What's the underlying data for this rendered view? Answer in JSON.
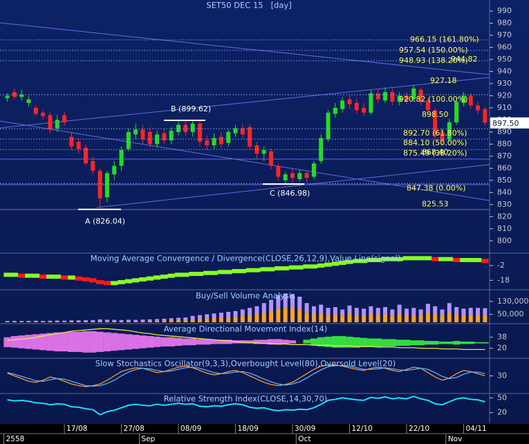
{
  "chart_data": [
    {
      "type": "candlestick",
      "title": "SET50 DEC 15   [day]",
      "categories": [
        null,
        null,
        null,
        null,
        null,
        null,
        null,
        null,
        "17/08",
        null,
        null,
        null,
        null,
        null,
        null,
        null,
        "27/08",
        null,
        null,
        null,
        null,
        null,
        null,
        null,
        "08/09",
        null,
        null,
        null,
        null,
        null,
        null,
        null,
        "18/09",
        null,
        null,
        null,
        null,
        null,
        null,
        null,
        "30/09",
        null,
        null,
        null,
        null,
        null,
        null,
        null,
        "12/10",
        null,
        null,
        null,
        null,
        null,
        null,
        null,
        "22/10",
        null,
        null,
        null,
        null,
        null,
        null,
        null,
        "04/11",
        null,
        null,
        null
      ],
      "month_categories": [
        "2558",
        null,
        null,
        null,
        null,
        null,
        null,
        null,
        null,
        null,
        null,
        null,
        null,
        null,
        null,
        null,
        null,
        null,
        null,
        "Sep",
        null,
        null,
        null,
        null,
        null,
        null,
        null,
        null,
        null,
        null,
        null,
        null,
        null,
        null,
        null,
        null,
        null,
        null,
        null,
        null,
        null,
        "Oct",
        null,
        null,
        null,
        null,
        null,
        null,
        null,
        null,
        null,
        null,
        null,
        null,
        null,
        null,
        null,
        null,
        null,
        null,
        null,
        null,
        "Nov",
        null,
        null,
        null,
        null,
        null
      ],
      "open": [
        918,
        923,
        919,
        914,
        910,
        906,
        904,
        893,
        904,
        886,
        882,
        877,
        866,
        858,
        836,
        855,
        862,
        876,
        888,
        892,
        890,
        880,
        889,
        883,
        890,
        896,
        890,
        897,
        883,
        879,
        886,
        881,
        889,
        893,
        894,
        879,
        872,
        874,
        862,
        850,
        856,
        851,
        856,
        853,
        866,
        884,
        905,
        909,
        917,
        914,
        910,
        906,
        922,
        916,
        923,
        915,
        920,
        917,
        925,
        916,
        908,
        890,
        884,
        898,
        914,
        920,
        912,
        909
      ],
      "high": [
        922,
        926,
        925,
        920,
        912,
        908,
        906,
        904,
        907,
        890,
        885,
        880,
        870,
        860,
        858,
        866,
        878,
        893,
        897,
        896,
        894,
        891,
        893,
        894,
        899,
        899.62,
        899,
        899,
        887,
        889,
        890,
        892,
        896,
        897,
        897,
        882,
        878,
        876,
        864,
        857,
        860,
        859,
        858,
        866,
        888,
        908,
        914,
        919,
        921,
        918,
        914,
        925,
        926,
        927,
        926,
        923,
        923,
        929,
        927,
        918,
        910,
        893,
        901,
        918,
        923,
        922,
        915,
        911
      ],
      "low": [
        915,
        917,
        916,
        911,
        903,
        900,
        889,
        890,
        895,
        875,
        872,
        862,
        855,
        826.04,
        832,
        850,
        858,
        874,
        884,
        880,
        877,
        877,
        880,
        880,
        887,
        887,
        886,
        878,
        875,
        876,
        877,
        878,
        886,
        885,
        875,
        868,
        866,
        859,
        850,
        846.98,
        848,
        849,
        849,
        851,
        864,
        882,
        902,
        906,
        909,
        905,
        903,
        904,
        914,
        914,
        912,
        912,
        913,
        915,
        912,
        904,
        884,
        879,
        882,
        896,
        911,
        909,
        905,
        895
      ],
      "close": [
        920,
        919,
        921,
        917,
        905,
        903,
        892,
        900,
        898,
        878,
        876,
        864,
        858,
        835,
        856,
        862,
        875,
        890,
        892,
        884,
        880,
        888,
        883,
        891,
        896,
        890,
        897,
        882,
        879,
        885,
        880,
        890,
        893,
        888,
        878,
        872,
        875,
        862,
        853,
        855,
        852,
        856,
        852,
        864,
        885,
        906,
        910,
        916,
        913,
        908,
        906,
        922,
        917,
        923,
        915,
        920,
        916,
        926,
        915,
        908,
        887,
        883,
        898,
        915,
        920,
        912,
        908,
        897.5
      ],
      "up_color": "#22dd22",
      "down_color": "#ff2424",
      "ylim": [
        791,
        998
      ],
      "yticks": [
        800,
        810,
        820,
        830,
        840,
        850,
        860,
        870,
        880,
        890,
        900,
        910,
        920,
        930,
        940,
        950,
        960,
        970,
        980,
        990
      ],
      "last_price": {
        "value": 897.5,
        "label": "897.50"
      },
      "annotations": [
        {
          "value": 966.15,
          "label": "966.15 (161.80%)"
        },
        {
          "value": 957.54,
          "label": "957.54 (150.00%)"
        },
        {
          "value": 948.93,
          "label": "948.93 (138.20%)"
        },
        944.82,
        927.18,
        {
          "value": 920.82,
          "label": "920.82 (100.00%)"
        },
        {
          "value": 898.5,
          "label": "898.50"
        },
        {
          "value": 892.7,
          "label": "892.70 (61.80%)"
        },
        {
          "value": 884.1,
          "label": "884.10 (50.00%)"
        },
        {
          "value": 875.49,
          "label": "875.49 (38.20%)"
        },
        {
          "value": 868.4,
          "label": "868.40"
        },
        {
          "value": 847.38,
          "label": "847.38 (0.00%)"
        },
        825.53,
        {
          "value": 899.62,
          "label": "B (899.62)"
        },
        {
          "value": 826.04,
          "label": "A (826.04)"
        },
        {
          "value": 846.98,
          "label": "C (846.98)"
        }
      ]
    },
    {
      "type": "ribbon",
      "title": "Moving Average Convergence / Divergence(CLOSE,26,12,9),Value,Line(signal)",
      "values": [
        -12,
        -12,
        -13,
        -13,
        -13,
        -14,
        -14,
        -14,
        -15,
        -15,
        -16,
        -17,
        -18,
        -20,
        -21,
        -21,
        -20,
        -19,
        -18,
        -17,
        -16,
        -15,
        -14,
        -13,
        -12,
        -12,
        -11,
        -11,
        -10,
        -10,
        -9,
        -9,
        -8,
        -8,
        -7,
        -7,
        -6,
        -6,
        -5,
        -5,
        -4,
        -4,
        -3,
        -3,
        -2,
        -1,
        0,
        1,
        2,
        3,
        3,
        4,
        4,
        5,
        5,
        5,
        6,
        6,
        6,
        6,
        5,
        5,
        5,
        4,
        4,
        4,
        4,
        3
      ],
      "up_color": "#88ff22",
      "down_color": "#ff1a1a",
      "ylim": [
        -26,
        10
      ],
      "yticks": [
        -2,
        -18
      ]
    },
    {
      "type": "stacked_bar",
      "title": "Buy/Sell Volume Analysis",
      "series": [
        {
          "color": "#ffa21e",
          "values": [
            4000,
            5000,
            4000,
            5000,
            5000,
            5000,
            5000,
            6000,
            5000,
            6000,
            6000,
            7000,
            7000,
            9000,
            8000,
            8000,
            7000,
            8000,
            8000,
            9000,
            9000,
            10000,
            11000,
            13000,
            14000,
            15000,
            20000,
            23000,
            25000,
            28000,
            30000,
            33000,
            35000,
            40000,
            45000,
            50000,
            60000,
            70000,
            85000,
            90000,
            88000,
            80000,
            60000,
            50000,
            55000,
            45000,
            48000,
            40000,
            53000,
            45000,
            43000,
            50000,
            45000,
            48000,
            40000,
            55000,
            43000,
            45000,
            40000,
            58000,
            50000,
            40000,
            60000,
            48000,
            43000,
            45000,
            45000,
            44000
          ]
        },
        {
          "color": "#b394ff",
          "values": [
            4000,
            4000,
            4000,
            4000,
            5000,
            4000,
            5000,
            5000,
            5000,
            6000,
            6000,
            6000,
            7000,
            9000,
            8000,
            7000,
            7000,
            8000,
            7000,
            8000,
            9000,
            10000,
            11000,
            12000,
            14000,
            15000,
            20000,
            22000,
            25000,
            27000,
            30000,
            32000,
            35000,
            40000,
            45000,
            50000,
            60000,
            70000,
            85000,
            90000,
            87000,
            80000,
            60000,
            50000,
            55000,
            45000,
            47000,
            40000,
            52000,
            45000,
            42000,
            50000,
            45000,
            47000,
            40000,
            55000,
            42000,
            45000,
            40000,
            57000,
            50000,
            40000,
            60000,
            47000,
            42000,
            45000,
            45000,
            44000
          ]
        }
      ],
      "ylim": [
        0,
        190000
      ],
      "yticks": [
        {
          "value": 130000,
          "label": "130,000"
        },
        {
          "value": 50000,
          "label": "50,000"
        }
      ]
    },
    {
      "type": "band",
      "title": "Average Directional Movement Index(14)",
      "series": [
        {
          "color": "#ff80ff",
          "values": [
            38,
            40,
            41,
            42,
            43,
            44,
            45,
            46,
            46,
            47,
            47,
            48,
            48,
            47,
            46,
            45,
            44,
            43,
            42,
            41,
            40,
            39,
            38,
            38,
            37,
            36,
            36,
            35,
            35,
            34,
            34,
            34,
            33,
            33,
            33,
            34,
            34,
            35,
            35,
            34,
            33,
            31,
            28,
            25,
            23,
            22,
            21,
            21,
            21,
            21,
            22,
            22,
            22,
            23,
            23,
            24,
            24,
            25,
            25,
            26,
            26,
            27,
            27,
            26,
            27,
            27,
            28,
            28
          ]
        },
        {
          "color": "#3cff3c",
          "values": [
            22,
            21,
            20,
            19,
            18,
            17,
            16,
            15,
            15,
            14,
            14,
            13,
            13,
            14,
            15,
            16,
            17,
            18,
            19,
            20,
            21,
            22,
            23,
            23,
            24,
            25,
            25,
            26,
            26,
            27,
            27,
            27,
            28,
            28,
            28,
            27,
            27,
            26,
            26,
            27,
            28,
            31,
            34,
            36,
            38,
            39,
            40,
            40,
            39,
            38,
            37,
            36,
            36,
            35,
            35,
            34,
            34,
            33,
            33,
            32,
            32,
            31,
            31,
            32,
            31,
            31,
            30,
            30
          ]
        },
        {
          "color": "#e6e640",
          "values": [
            33,
            34,
            35,
            36,
            38,
            40,
            42,
            44,
            46,
            48,
            49,
            50,
            51,
            52,
            52,
            51,
            50,
            49,
            47,
            45,
            44,
            42,
            41,
            40,
            39,
            38,
            37,
            36,
            35,
            34,
            33,
            32,
            31,
            30,
            29,
            29,
            28,
            28,
            27,
            27,
            26,
            26,
            26,
            25,
            25,
            25,
            24,
            24,
            24,
            23,
            23,
            23,
            22,
            22,
            22,
            21,
            21,
            21,
            20,
            20,
            20,
            19,
            19,
            19,
            18,
            18,
            18,
            18
          ]
        }
      ],
      "ylim": [
        6,
        58
      ],
      "yticks": [
        38,
        20
      ]
    },
    {
      "type": "line",
      "title": "Slow Stochastics Oscillator(9,3,3),Overbought Level(80),Oversold Level(20)",
      "series": [
        {
          "color": "#ff9a30",
          "values": [
            35,
            30,
            25,
            20,
            18,
            22,
            28,
            25,
            20,
            15,
            12,
            10,
            12,
            15,
            22,
            30,
            38,
            42,
            45,
            44,
            40,
            36,
            38,
            42,
            46,
            48,
            45,
            40,
            35,
            32,
            34,
            38,
            40,
            36,
            30,
            24,
            18,
            14,
            12,
            14,
            18,
            26,
            34,
            42,
            48,
            50,
            50,
            48,
            45,
            42,
            40,
            44,
            46,
            44,
            40,
            38,
            42,
            46,
            44,
            36,
            28,
            22,
            26,
            34,
            40,
            38,
            34,
            30
          ]
        },
        {
          "color": "#5ab4ff",
          "values": [
            36,
            33,
            29,
            25,
            21,
            20,
            23,
            25,
            24,
            20,
            16,
            12,
            11,
            12,
            16,
            22,
            30,
            37,
            42,
            44,
            43,
            40,
            38,
            39,
            42,
            45,
            46,
            44,
            40,
            36,
            34,
            35,
            37,
            38,
            35,
            30,
            24,
            19,
            15,
            13,
            15,
            19,
            26,
            34,
            41,
            47,
            49,
            49,
            48,
            45,
            42,
            42,
            43,
            45,
            43,
            41,
            40,
            42,
            44,
            42,
            36,
            29,
            25,
            27,
            33,
            37,
            37,
            34
          ]
        }
      ],
      "ylim": [
        0,
        60
      ],
      "yticks": [
        30
      ]
    },
    {
      "type": "line",
      "title": "Relative Strength Index(CLOSE,14,30,70)",
      "series": [
        {
          "color": "#19e0ff",
          "values": [
            46,
            44,
            45,
            43,
            40,
            39,
            36,
            38,
            37,
            32,
            31,
            28,
            26,
            16,
            22,
            25,
            30,
            35,
            37,
            35,
            34,
            37,
            35,
            37,
            39,
            37,
            38,
            33,
            32,
            34,
            33,
            36,
            38,
            36,
            31,
            29,
            30,
            26,
            24,
            26,
            25,
            27,
            26,
            30,
            37,
            45,
            47,
            50,
            48,
            46,
            45,
            51,
            49,
            52,
            48,
            50,
            48,
            53,
            48,
            45,
            38,
            36,
            42,
            48,
            50,
            47,
            46,
            42
          ]
        }
      ],
      "ylim": [
        0,
        56
      ],
      "yticks": [
        50,
        20
      ]
    }
  ]
}
